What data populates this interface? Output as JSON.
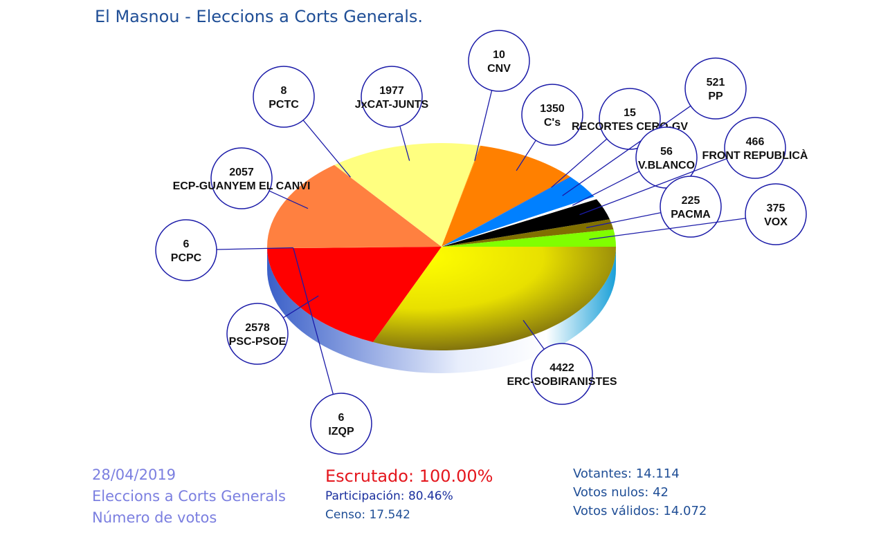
{
  "header": {
    "title": "El Masnou - Eleccions a Corts Generals."
  },
  "footer": {
    "date": "28/04/2019",
    "election": "Eleccions a Corts Generals",
    "metric": "Número de votos",
    "escrutado": "Escrutado: 100.00%",
    "participacion": "Participación: 80.46%",
    "censo": "Censo: 17.542",
    "votantes": "Votantes: 14.114",
    "nulos": "Votos nulos: 42",
    "validos": "Votos válidos: 14.072"
  },
  "chart_data": {
    "type": "pie",
    "title": "El Masnou - Eleccions a Corts Generals.",
    "slices": [
      {
        "label": "ERC-SOBIRANISTES",
        "value": 4422,
        "color": "#ffff00"
      },
      {
        "label": "PSC-PSOE",
        "value": 2578,
        "color": "#ff0000"
      },
      {
        "label": "IZQP",
        "value": 6,
        "color": "#ff5a00"
      },
      {
        "label": "PCPC",
        "value": 6,
        "color": "#ff6a30"
      },
      {
        "label": "ECP-GUANYEM EL CANVI",
        "value": 2057,
        "color": "#ff8040"
      },
      {
        "label": "PCTC",
        "value": 8,
        "color": "#ffe070"
      },
      {
        "label": "JxCAT-JUNTS",
        "value": 1977,
        "color": "#ffff80"
      },
      {
        "label": "CNV",
        "value": 10,
        "color": "#ffa000"
      },
      {
        "label": "C's",
        "value": 1350,
        "color": "#ff8000"
      },
      {
        "label": "RECORTES CERO-GV",
        "value": 15,
        "color": "#0060ff"
      },
      {
        "label": "PP",
        "value": 521,
        "color": "#0080ff"
      },
      {
        "label": "V.BLANCO",
        "value": 56,
        "color": "#ffffff"
      },
      {
        "label": "FRONT REPUBLICÀ",
        "value": 466,
        "color": "#000000"
      },
      {
        "label": "PACMA",
        "value": 225,
        "color": "#807000"
      },
      {
        "label": "VOX",
        "value": 375,
        "color": "#80ff00"
      }
    ]
  }
}
